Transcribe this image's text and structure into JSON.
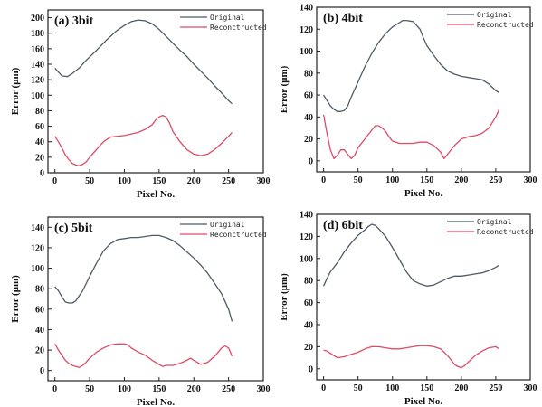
{
  "chart_data": [
    {
      "type": "line",
      "title": "(a) 3bit",
      "xlabel": "Pixel No.",
      "ylabel": "Error (μm)",
      "xlim": [
        -10,
        300
      ],
      "ylim": [
        0,
        210
      ],
      "xticks": [
        0,
        50,
        100,
        150,
        200,
        250,
        300
      ],
      "yticks": [
        0,
        20,
        40,
        60,
        80,
        100,
        120,
        140,
        160,
        180,
        200
      ],
      "legend": "top-right",
      "series": [
        {
          "name": "Original",
          "color": "#505a66",
          "x": [
            0,
            5,
            10,
            18,
            25,
            35,
            45,
            60,
            75,
            90,
            100,
            110,
            120,
            130,
            140,
            150,
            160,
            170,
            180,
            190,
            200,
            210,
            220,
            230,
            240,
            250,
            255
          ],
          "y": [
            135,
            130,
            125,
            124,
            128,
            135,
            145,
            158,
            172,
            184,
            190,
            195,
            197,
            196,
            192,
            185,
            176,
            167,
            158,
            150,
            140,
            131,
            122,
            112,
            103,
            93,
            89
          ]
        },
        {
          "name": "Reconctructed",
          "color": "#e04a66",
          "x": [
            0,
            5,
            10,
            15,
            20,
            25,
            30,
            35,
            40,
            45,
            50,
            60,
            70,
            80,
            90,
            100,
            110,
            120,
            130,
            140,
            145,
            150,
            155,
            160,
            165,
            170,
            180,
            190,
            200,
            210,
            220,
            230,
            240,
            250,
            255
          ],
          "y": [
            47,
            40,
            32,
            23,
            17,
            12,
            10,
            9,
            11,
            14,
            20,
            30,
            40,
            46,
            47,
            48,
            50,
            52,
            56,
            62,
            68,
            72,
            74,
            72,
            64,
            53,
            40,
            30,
            24,
            22,
            24,
            30,
            38,
            47,
            52
          ]
        }
      ]
    },
    {
      "type": "line",
      "title": "(b) 4bit",
      "xlabel": "Pixel No.",
      "ylabel": "Error (μm)",
      "xlim": [
        -10,
        300
      ],
      "ylim": [
        -10,
        140
      ],
      "xticks": [
        0,
        50,
        100,
        150,
        200,
        250,
        300
      ],
      "yticks": [
        0,
        20,
        40,
        60,
        80,
        100,
        120,
        140
      ],
      "legend": "top-right",
      "series": [
        {
          "name": "Original",
          "color": "#505a66",
          "x": [
            0,
            5,
            10,
            15,
            20,
            25,
            30,
            35,
            40,
            50,
            60,
            70,
            80,
            90,
            100,
            110,
            115,
            120,
            130,
            140,
            145,
            150,
            160,
            170,
            180,
            190,
            200,
            210,
            220,
            230,
            240,
            250,
            255
          ],
          "y": [
            60,
            55,
            50,
            47,
            45,
            45,
            46,
            50,
            58,
            72,
            86,
            98,
            108,
            116,
            122,
            126,
            128,
            128,
            127,
            120,
            112,
            105,
            96,
            88,
            82,
            79,
            77,
            76,
            75,
            74,
            70,
            64,
            62
          ]
        },
        {
          "name": "Reconctructed",
          "color": "#e04a66",
          "x": [
            0,
            5,
            10,
            15,
            20,
            25,
            30,
            35,
            40,
            45,
            50,
            60,
            70,
            75,
            80,
            85,
            90,
            95,
            100,
            110,
            120,
            130,
            140,
            150,
            160,
            170,
            175,
            180,
            190,
            200,
            210,
            220,
            230,
            240,
            250,
            255
          ],
          "y": [
            42,
            25,
            10,
            2,
            5,
            10,
            10,
            6,
            2,
            5,
            12,
            20,
            28,
            32,
            32,
            30,
            27,
            22,
            18,
            16,
            16,
            16,
            17,
            17,
            14,
            8,
            2,
            6,
            14,
            20,
            22,
            23,
            25,
            30,
            40,
            47
          ]
        }
      ]
    },
    {
      "type": "line",
      "title": "(c) 5bit",
      "xlabel": "Pixel No.",
      "ylabel": "Error (μm)",
      "xlim": [
        -10,
        300
      ],
      "ylim": [
        -10,
        150
      ],
      "xticks": [
        0,
        50,
        100,
        150,
        200,
        250,
        300
      ],
      "yticks": [
        0,
        20,
        40,
        60,
        80,
        100,
        120,
        140
      ],
      "legend": "top-right",
      "series": [
        {
          "name": "Original",
          "color": "#505a66",
          "x": [
            0,
            5,
            10,
            15,
            20,
            25,
            30,
            40,
            50,
            60,
            70,
            80,
            90,
            100,
            110,
            120,
            130,
            140,
            150,
            160,
            170,
            180,
            190,
            200,
            210,
            220,
            230,
            240,
            250,
            255
          ],
          "y": [
            82,
            78,
            72,
            67,
            66,
            66,
            68,
            78,
            92,
            105,
            117,
            124,
            128,
            129,
            130,
            130,
            131,
            132,
            132,
            130,
            127,
            122,
            116,
            110,
            103,
            95,
            85,
            75,
            60,
            48
          ]
        },
        {
          "name": "Reconctructed",
          "color": "#e04a66",
          "x": [
            0,
            5,
            10,
            15,
            20,
            25,
            30,
            35,
            40,
            45,
            50,
            60,
            70,
            80,
            90,
            100,
            105,
            110,
            120,
            130,
            140,
            150,
            155,
            160,
            170,
            180,
            190,
            195,
            200,
            210,
            220,
            230,
            240,
            245,
            250,
            255
          ],
          "y": [
            26,
            20,
            15,
            10,
            7,
            5,
            4,
            3,
            5,
            8,
            12,
            18,
            22,
            25,
            26,
            26,
            25,
            22,
            18,
            15,
            10,
            6,
            4,
            5,
            5,
            7,
            10,
            12,
            10,
            6,
            8,
            14,
            22,
            24,
            22,
            14
          ]
        }
      ]
    },
    {
      "type": "line",
      "title": "(d) 6bit",
      "xlabel": "Pixel No.",
      "ylabel": "Error (μm)",
      "xlim": [
        -10,
        300
      ],
      "ylim": [
        -10,
        140
      ],
      "xticks": [
        0,
        50,
        100,
        150,
        200,
        250,
        300
      ],
      "yticks": [
        0,
        20,
        40,
        60,
        80,
        100,
        120,
        140
      ],
      "legend": "top-right",
      "series": [
        {
          "name": "Original",
          "color": "#505a66",
          "x": [
            0,
            5,
            10,
            20,
            30,
            40,
            50,
            60,
            65,
            70,
            75,
            80,
            90,
            100,
            110,
            120,
            130,
            140,
            145,
            150,
            160,
            170,
            180,
            190,
            200,
            210,
            220,
            230,
            240,
            250,
            255
          ],
          "y": [
            75,
            82,
            88,
            96,
            106,
            114,
            121,
            126,
            129,
            131,
            130,
            127,
            120,
            110,
            99,
            88,
            80,
            77,
            76,
            75,
            76,
            79,
            82,
            84,
            84,
            85,
            86,
            87,
            89,
            92,
            94
          ]
        },
        {
          "name": "Reconctructed",
          "color": "#e04a66",
          "x": [
            0,
            5,
            10,
            15,
            20,
            30,
            40,
            50,
            60,
            70,
            80,
            90,
            100,
            110,
            120,
            130,
            140,
            150,
            160,
            170,
            180,
            185,
            190,
            195,
            200,
            205,
            210,
            220,
            230,
            240,
            250,
            255
          ],
          "y": [
            17,
            16,
            14,
            12,
            10,
            11,
            13,
            15,
            18,
            20,
            20,
            19,
            18,
            18,
            19,
            20,
            21,
            21,
            20,
            18,
            12,
            8,
            4,
            2,
            1,
            3,
            6,
            12,
            16,
            19,
            20,
            18
          ]
        }
      ]
    }
  ]
}
